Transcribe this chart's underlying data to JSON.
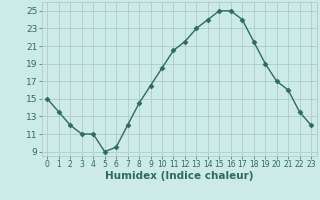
{
  "x": [
    0,
    1,
    2,
    3,
    4,
    5,
    6,
    7,
    8,
    9,
    10,
    11,
    12,
    13,
    14,
    15,
    16,
    17,
    18,
    19,
    20,
    21,
    22,
    23
  ],
  "y": [
    15,
    13.5,
    12,
    11,
    11,
    9,
    9.5,
    12,
    14.5,
    16.5,
    18.5,
    20.5,
    21.5,
    23,
    24,
    25,
    25,
    24,
    21.5,
    19,
    17,
    16,
    13.5,
    12
  ],
  "xlabel": "Humidex (Indice chaleur)",
  "line_color": "#2e6b5e",
  "marker": "D",
  "marker_size": 2.5,
  "line_width": 1.0,
  "bg_color": "#cceae8",
  "grid_color": "#b0ccca",
  "tick_color": "#2e6b5e",
  "xlim": [
    -0.5,
    23.5
  ],
  "ylim": [
    8.5,
    26
  ],
  "yticks": [
    9,
    11,
    13,
    15,
    17,
    19,
    21,
    23,
    25
  ],
  "xticks": [
    0,
    1,
    2,
    3,
    4,
    5,
    6,
    7,
    8,
    9,
    10,
    11,
    12,
    13,
    14,
    15,
    16,
    17,
    18,
    19,
    20,
    21,
    22,
    23
  ],
  "xlabel_fontsize": 7.5,
  "tick_fontsize": 6.5
}
